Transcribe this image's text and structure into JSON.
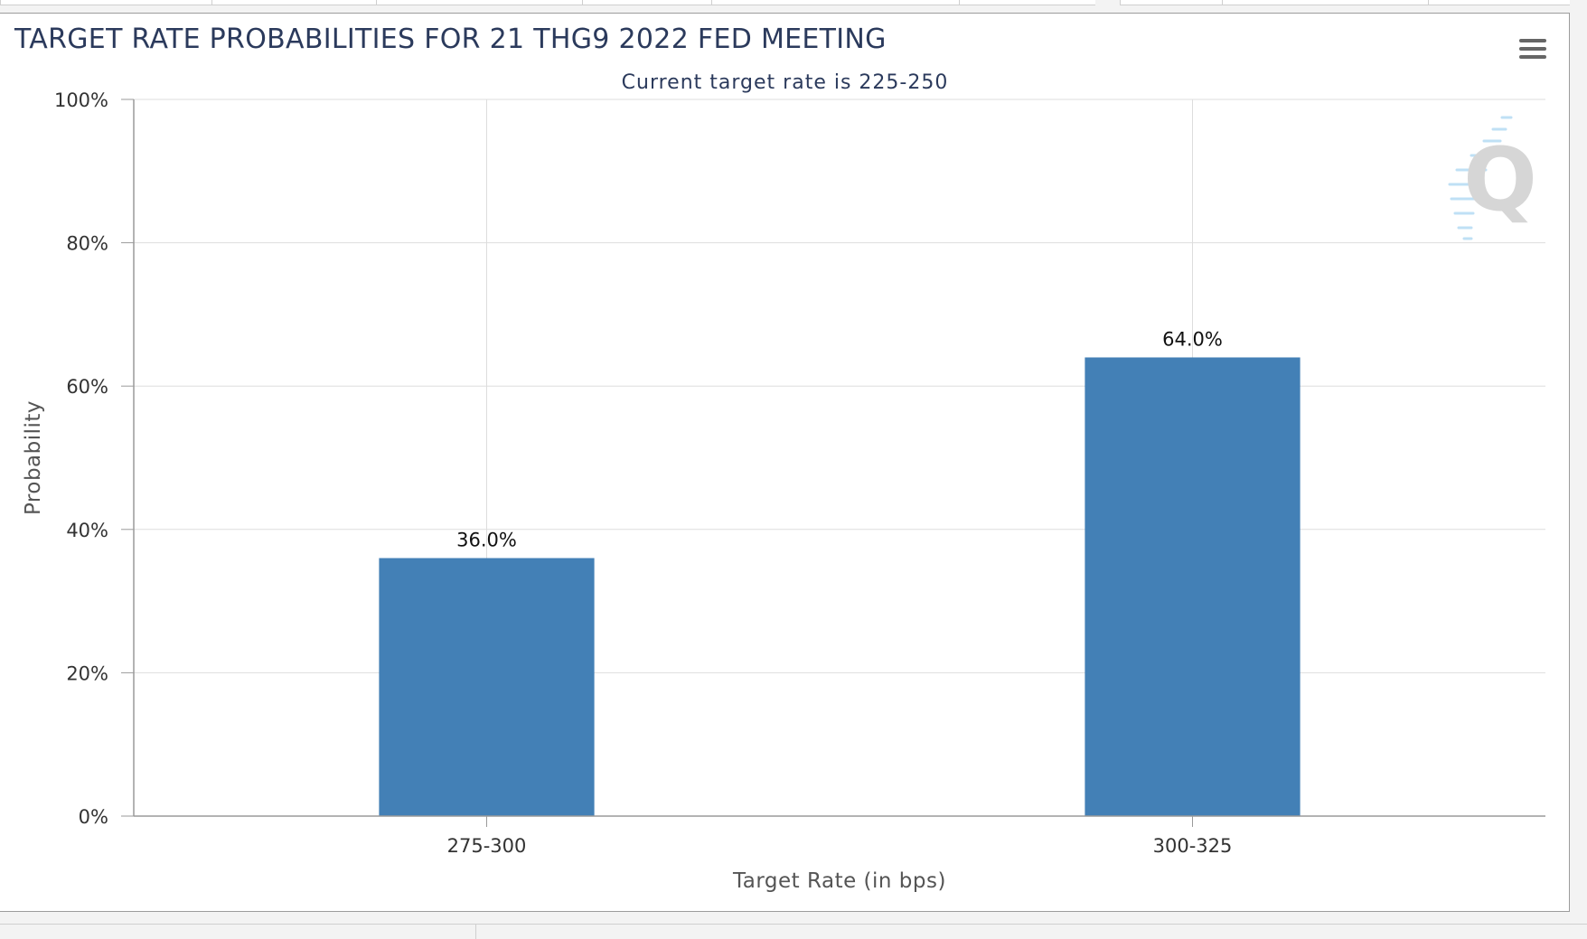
{
  "chart_data": {
    "type": "bar",
    "title": "TARGET RATE PROBABILITIES FOR 21 THG9 2022 FED MEETING",
    "subtitle": "Current target rate is 225-250",
    "xlabel": "Target Rate (in bps)",
    "ylabel": "Probability",
    "categories": [
      "275-300",
      "300-325"
    ],
    "values": [
      36.0,
      64.0
    ],
    "data_labels": [
      "36.0%",
      "64.0%"
    ],
    "ylim": [
      0,
      100
    ],
    "yticks": [
      0,
      20,
      40,
      60,
      80,
      100
    ],
    "ytick_labels": [
      "0%",
      "20%",
      "40%",
      "60%",
      "80%",
      "100%"
    ],
    "grid": true,
    "bar_color": "#4380b6",
    "grid_color": "#dddddd",
    "watermark": "Q"
  },
  "colors": {
    "title": "#2b3a5c",
    "axis_line": "#9a9a9a"
  },
  "icons": {
    "menu": "hamburger-menu-icon"
  }
}
